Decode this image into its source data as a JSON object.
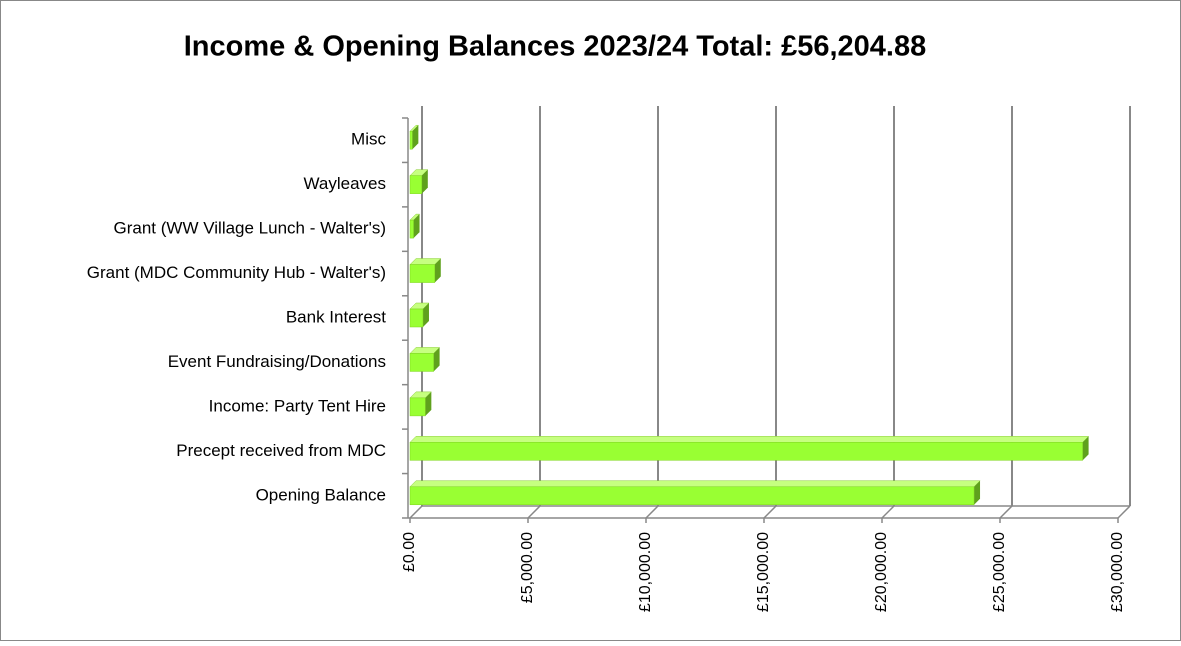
{
  "chart_data": {
    "type": "bar",
    "orientation": "horizontal",
    "title": "Income & Opening Balances 2023/24 Total: £56,204.88",
    "categories": [
      "Opening Balance",
      "Precept received from MDC",
      "Income: Party Tent Hire",
      "Event Fundraising/Donations",
      "Bank Interest",
      "Grant (MDC Community Hub - Walter's)",
      "Grant (WW Village Lunch - Walter's)",
      "Wayleaves",
      "Misc"
    ],
    "values": [
      23900,
      28500,
      650,
      1000,
      550,
      1050,
      150,
      500,
      100
    ],
    "color": "#99ff33",
    "xlim": [
      0,
      30000
    ],
    "xticks": [
      {
        "value": 0,
        "label": "£0.00"
      },
      {
        "value": 5000,
        "label": "£5,000.00"
      },
      {
        "value": 10000,
        "label": "£10,000.00"
      },
      {
        "value": 15000,
        "label": "£15,000.00"
      },
      {
        "value": 20000,
        "label": "£20,000.00"
      },
      {
        "value": 25000,
        "label": "£25,000.00"
      },
      {
        "value": 30000,
        "label": "£30,000.00"
      }
    ],
    "grid": true
  }
}
